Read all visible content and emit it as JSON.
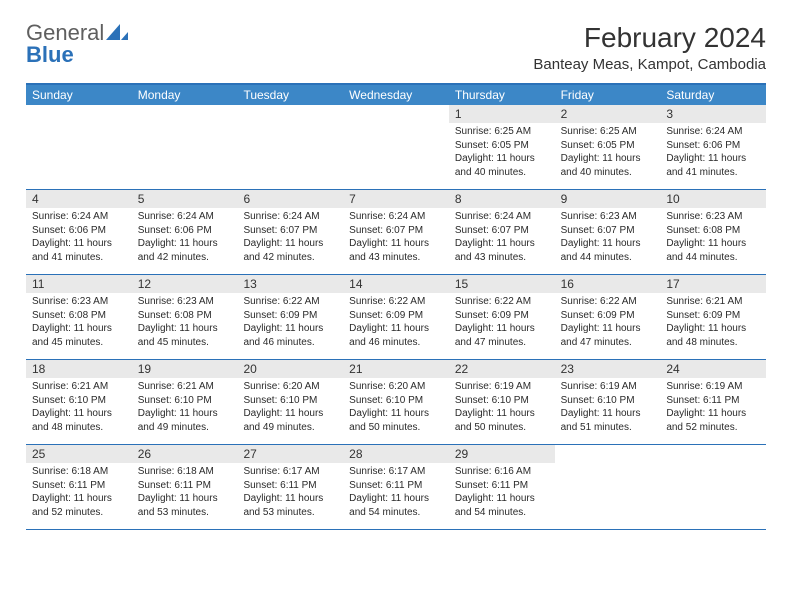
{
  "logo": {
    "word1": "General",
    "word2": "Blue"
  },
  "title": "February 2024",
  "location": "Banteay Meas, Kampot, Cambodia",
  "colors": {
    "brand_blue": "#2b71b8",
    "header_blue": "#3c87c7",
    "daynum_bg": "#e9e9e9",
    "text": "#333333",
    "logo_gray": "#5f5f5f"
  },
  "dow": [
    "Sunday",
    "Monday",
    "Tuesday",
    "Wednesday",
    "Thursday",
    "Friday",
    "Saturday"
  ],
  "weeks": [
    [
      {
        "blank": true
      },
      {
        "blank": true
      },
      {
        "blank": true
      },
      {
        "blank": true
      },
      {
        "num": "1",
        "sunrise": "6:25 AM",
        "sunset": "6:05 PM",
        "daylight": "11 hours and 40 minutes."
      },
      {
        "num": "2",
        "sunrise": "6:25 AM",
        "sunset": "6:05 PM",
        "daylight": "11 hours and 40 minutes."
      },
      {
        "num": "3",
        "sunrise": "6:24 AM",
        "sunset": "6:06 PM",
        "daylight": "11 hours and 41 minutes."
      }
    ],
    [
      {
        "num": "4",
        "sunrise": "6:24 AM",
        "sunset": "6:06 PM",
        "daylight": "11 hours and 41 minutes."
      },
      {
        "num": "5",
        "sunrise": "6:24 AM",
        "sunset": "6:06 PM",
        "daylight": "11 hours and 42 minutes."
      },
      {
        "num": "6",
        "sunrise": "6:24 AM",
        "sunset": "6:07 PM",
        "daylight": "11 hours and 42 minutes."
      },
      {
        "num": "7",
        "sunrise": "6:24 AM",
        "sunset": "6:07 PM",
        "daylight": "11 hours and 43 minutes."
      },
      {
        "num": "8",
        "sunrise": "6:24 AM",
        "sunset": "6:07 PM",
        "daylight": "11 hours and 43 minutes."
      },
      {
        "num": "9",
        "sunrise": "6:23 AM",
        "sunset": "6:07 PM",
        "daylight": "11 hours and 44 minutes."
      },
      {
        "num": "10",
        "sunrise": "6:23 AM",
        "sunset": "6:08 PM",
        "daylight": "11 hours and 44 minutes."
      }
    ],
    [
      {
        "num": "11",
        "sunrise": "6:23 AM",
        "sunset": "6:08 PM",
        "daylight": "11 hours and 45 minutes."
      },
      {
        "num": "12",
        "sunrise": "6:23 AM",
        "sunset": "6:08 PM",
        "daylight": "11 hours and 45 minutes."
      },
      {
        "num": "13",
        "sunrise": "6:22 AM",
        "sunset": "6:09 PM",
        "daylight": "11 hours and 46 minutes."
      },
      {
        "num": "14",
        "sunrise": "6:22 AM",
        "sunset": "6:09 PM",
        "daylight": "11 hours and 46 minutes."
      },
      {
        "num": "15",
        "sunrise": "6:22 AM",
        "sunset": "6:09 PM",
        "daylight": "11 hours and 47 minutes."
      },
      {
        "num": "16",
        "sunrise": "6:22 AM",
        "sunset": "6:09 PM",
        "daylight": "11 hours and 47 minutes."
      },
      {
        "num": "17",
        "sunrise": "6:21 AM",
        "sunset": "6:09 PM",
        "daylight": "11 hours and 48 minutes."
      }
    ],
    [
      {
        "num": "18",
        "sunrise": "6:21 AM",
        "sunset": "6:10 PM",
        "daylight": "11 hours and 48 minutes."
      },
      {
        "num": "19",
        "sunrise": "6:21 AM",
        "sunset": "6:10 PM",
        "daylight": "11 hours and 49 minutes."
      },
      {
        "num": "20",
        "sunrise": "6:20 AM",
        "sunset": "6:10 PM",
        "daylight": "11 hours and 49 minutes."
      },
      {
        "num": "21",
        "sunrise": "6:20 AM",
        "sunset": "6:10 PM",
        "daylight": "11 hours and 50 minutes."
      },
      {
        "num": "22",
        "sunrise": "6:19 AM",
        "sunset": "6:10 PM",
        "daylight": "11 hours and 50 minutes."
      },
      {
        "num": "23",
        "sunrise": "6:19 AM",
        "sunset": "6:10 PM",
        "daylight": "11 hours and 51 minutes."
      },
      {
        "num": "24",
        "sunrise": "6:19 AM",
        "sunset": "6:11 PM",
        "daylight": "11 hours and 52 minutes."
      }
    ],
    [
      {
        "num": "25",
        "sunrise": "6:18 AM",
        "sunset": "6:11 PM",
        "daylight": "11 hours and 52 minutes."
      },
      {
        "num": "26",
        "sunrise": "6:18 AM",
        "sunset": "6:11 PM",
        "daylight": "11 hours and 53 minutes."
      },
      {
        "num": "27",
        "sunrise": "6:17 AM",
        "sunset": "6:11 PM",
        "daylight": "11 hours and 53 minutes."
      },
      {
        "num": "28",
        "sunrise": "6:17 AM",
        "sunset": "6:11 PM",
        "daylight": "11 hours and 54 minutes."
      },
      {
        "num": "29",
        "sunrise": "6:16 AM",
        "sunset": "6:11 PM",
        "daylight": "11 hours and 54 minutes."
      },
      {
        "blank": true
      },
      {
        "blank": true
      }
    ]
  ],
  "labels": {
    "sunrise": "Sunrise:",
    "sunset": "Sunset:",
    "daylight": "Daylight:"
  }
}
